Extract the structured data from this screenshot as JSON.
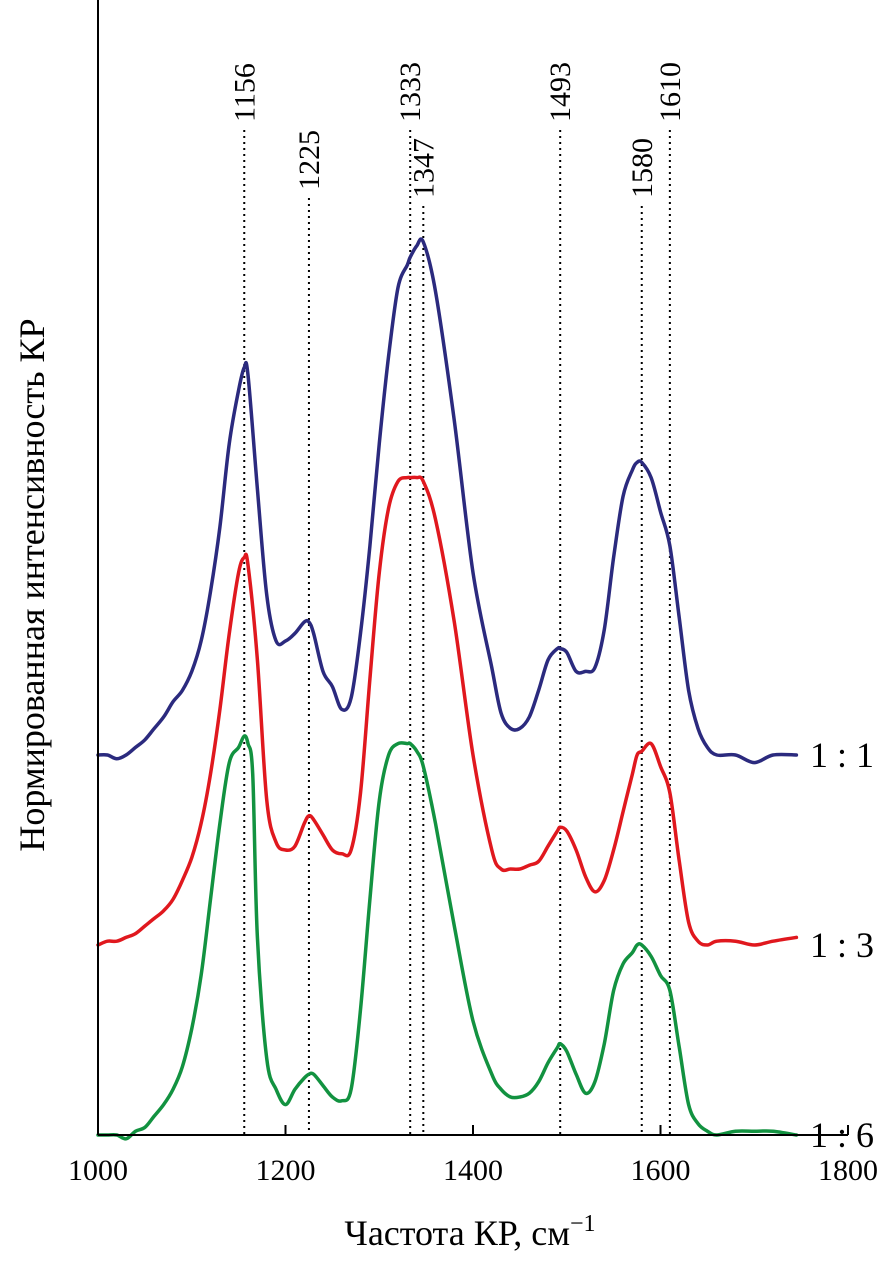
{
  "chart_data": {
    "type": "line",
    "title": "",
    "xlabel": "Частота КР, см",
    "xlabel_superscript": "−1",
    "ylabel": "Нормированная интенсивность КР",
    "xlim": [
      1000,
      1800
    ],
    "x_ticks": [
      "1000",
      "1200",
      "1400",
      "1600",
      "1800"
    ],
    "y_ticks": [],
    "grid": false,
    "peak_markers": [
      {
        "x": 1156,
        "label": "1156"
      },
      {
        "x": 1225,
        "label": "1225"
      },
      {
        "x": 1333,
        "label": "1333"
      },
      {
        "x": 1347,
        "label": "1347"
      },
      {
        "x": 1493,
        "label": "1493"
      },
      {
        "x": 1580,
        "label": "1580"
      },
      {
        "x": 1610,
        "label": "1610"
      }
    ],
    "series": [
      {
        "name": "1 : 1",
        "color": "#2b2a7e",
        "offset": 1.0,
        "x": [
          1000,
          1010,
          1020,
          1030,
          1040,
          1050,
          1060,
          1070,
          1080,
          1090,
          1100,
          1110,
          1120,
          1130,
          1140,
          1150,
          1156,
          1160,
          1170,
          1180,
          1190,
          1200,
          1210,
          1220,
          1225,
          1230,
          1240,
          1250,
          1260,
          1270,
          1280,
          1290,
          1300,
          1310,
          1320,
          1330,
          1333,
          1340,
          1347,
          1360,
          1380,
          1400,
          1420,
          1430,
          1440,
          1450,
          1460,
          1470,
          1480,
          1490,
          1493,
          1500,
          1510,
          1520,
          1530,
          1540,
          1550,
          1560,
          1570,
          1575,
          1580,
          1590,
          1600,
          1610,
          1620,
          1630,
          1640,
          1650,
          1660,
          1680,
          1700,
          1720,
          1745
        ],
        "y": [
          0.0,
          0.0,
          -0.01,
          0.0,
          0.02,
          0.04,
          0.07,
          0.1,
          0.14,
          0.17,
          0.22,
          0.3,
          0.43,
          0.6,
          0.82,
          0.96,
          1.02,
          1.0,
          0.7,
          0.42,
          0.3,
          0.3,
          0.32,
          0.35,
          0.35,
          0.32,
          0.22,
          0.18,
          0.12,
          0.15,
          0.32,
          0.55,
          0.82,
          1.05,
          1.23,
          1.29,
          1.31,
          1.34,
          1.35,
          1.22,
          0.88,
          0.48,
          0.23,
          0.11,
          0.07,
          0.07,
          0.1,
          0.17,
          0.25,
          0.28,
          0.28,
          0.27,
          0.22,
          0.22,
          0.23,
          0.33,
          0.52,
          0.68,
          0.75,
          0.77,
          0.77,
          0.73,
          0.64,
          0.55,
          0.36,
          0.17,
          0.07,
          0.02,
          0.0,
          0.0,
          -0.02,
          0.0,
          0.0
        ]
      },
      {
        "name": "1 : 3",
        "color": "#e0181e",
        "offset": 0.5,
        "x": [
          1000,
          1010,
          1020,
          1030,
          1040,
          1050,
          1060,
          1070,
          1080,
          1090,
          1100,
          1110,
          1120,
          1130,
          1140,
          1150,
          1156,
          1160,
          1170,
          1180,
          1190,
          1200,
          1210,
          1220,
          1225,
          1230,
          1240,
          1250,
          1260,
          1270,
          1280,
          1290,
          1300,
          1310,
          1320,
          1330,
          1333,
          1340,
          1347,
          1360,
          1380,
          1400,
          1420,
          1430,
          1440,
          1450,
          1460,
          1470,
          1480,
          1490,
          1493,
          1500,
          1510,
          1520,
          1530,
          1540,
          1550,
          1560,
          1570,
          1575,
          1580,
          1590,
          1600,
          1610,
          1620,
          1630,
          1640,
          1650,
          1660,
          1680,
          1700,
          1720,
          1745
        ],
        "y": [
          0.0,
          0.01,
          0.01,
          0.02,
          0.03,
          0.05,
          0.07,
          0.09,
          0.12,
          0.17,
          0.23,
          0.32,
          0.45,
          0.62,
          0.82,
          0.98,
          1.02,
          1.0,
          0.75,
          0.38,
          0.27,
          0.25,
          0.26,
          0.32,
          0.34,
          0.33,
          0.29,
          0.25,
          0.24,
          0.25,
          0.4,
          0.7,
          0.98,
          1.15,
          1.22,
          1.23,
          1.23,
          1.23,
          1.22,
          1.12,
          0.85,
          0.5,
          0.25,
          0.2,
          0.2,
          0.2,
          0.21,
          0.22,
          0.26,
          0.3,
          0.31,
          0.3,
          0.25,
          0.18,
          0.14,
          0.17,
          0.25,
          0.35,
          0.45,
          0.5,
          0.51,
          0.53,
          0.47,
          0.4,
          0.22,
          0.06,
          0.01,
          0.0,
          0.01,
          0.01,
          0.0,
          0.01,
          0.02
        ]
      },
      {
        "name": "1 : 6",
        "color": "#129240",
        "offset": 0.0,
        "x": [
          1000,
          1010,
          1020,
          1030,
          1040,
          1050,
          1060,
          1070,
          1080,
          1090,
          1100,
          1110,
          1120,
          1130,
          1140,
          1150,
          1156,
          1160,
          1165,
          1170,
          1180,
          1190,
          1200,
          1210,
          1220,
          1225,
          1230,
          1240,
          1250,
          1260,
          1270,
          1280,
          1290,
          1300,
          1310,
          1320,
          1330,
          1333,
          1340,
          1347,
          1360,
          1380,
          1400,
          1420,
          1430,
          1440,
          1450,
          1460,
          1470,
          1480,
          1490,
          1493,
          1500,
          1510,
          1520,
          1530,
          1540,
          1550,
          1560,
          1570,
          1575,
          1580,
          1590,
          1600,
          1610,
          1620,
          1630,
          1640,
          1650,
          1660,
          1680,
          1700,
          1720,
          1745
        ],
        "y": [
          0.0,
          0.0,
          0.0,
          -0.01,
          0.01,
          0.02,
          0.05,
          0.08,
          0.12,
          0.18,
          0.28,
          0.42,
          0.62,
          0.82,
          0.98,
          1.02,
          1.05,
          1.03,
          0.95,
          0.52,
          0.2,
          0.12,
          0.08,
          0.12,
          0.15,
          0.16,
          0.16,
          0.13,
          0.1,
          0.09,
          0.12,
          0.33,
          0.62,
          0.88,
          1.0,
          1.03,
          1.03,
          1.03,
          1.01,
          0.97,
          0.82,
          0.55,
          0.3,
          0.16,
          0.12,
          0.1,
          0.1,
          0.11,
          0.14,
          0.19,
          0.23,
          0.24,
          0.22,
          0.16,
          0.11,
          0.14,
          0.24,
          0.38,
          0.45,
          0.48,
          0.5,
          0.5,
          0.47,
          0.42,
          0.38,
          0.23,
          0.08,
          0.03,
          0.01,
          0.0,
          0.01,
          0.01,
          0.01,
          0.0
        ]
      }
    ]
  }
}
